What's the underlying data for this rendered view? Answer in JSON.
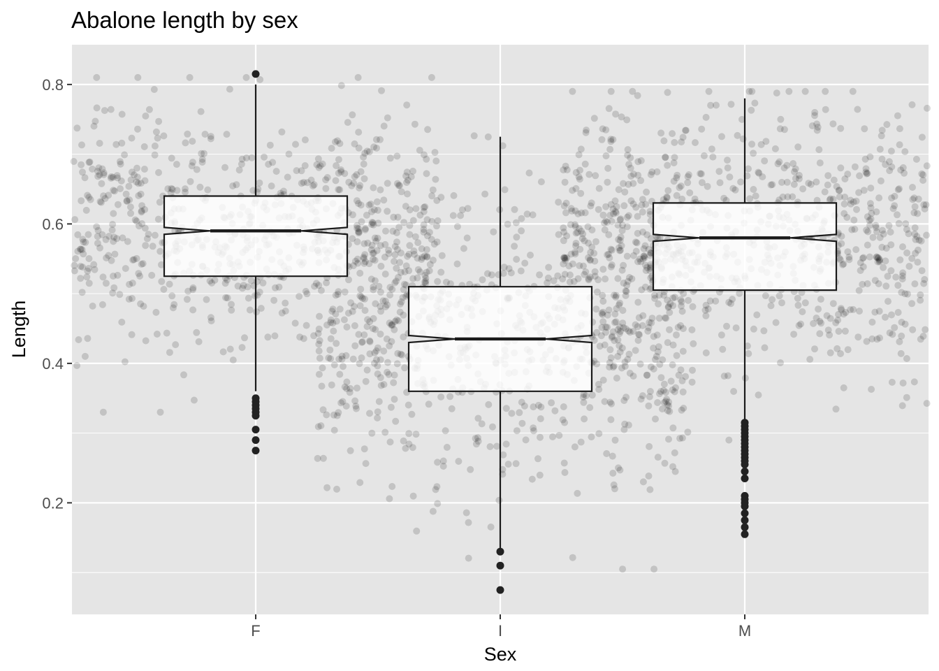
{
  "chart_data": {
    "type": "boxplot",
    "title": "Abalone length by sex",
    "xlabel": "Sex",
    "ylabel": "Length",
    "categories": [
      "F",
      "I",
      "M"
    ],
    "ylim": [
      0.04,
      0.857
    ],
    "y_ticks": [
      0.2,
      0.4,
      0.6,
      0.8
    ],
    "y_tick_labels": [
      "0.2",
      "0.4",
      "0.6",
      "0.8"
    ],
    "notched": true,
    "grid": true,
    "boxes": [
      {
        "category": "F",
        "q1": 0.525,
        "median": 0.59,
        "q3": 0.64,
        "notch_low": 0.585,
        "notch_high": 0.595,
        "whisker_low": 0.36,
        "whisker_high": 0.8,
        "outliers": [
          0.815,
          0.35,
          0.345,
          0.34,
          0.335,
          0.33,
          0.325,
          0.305,
          0.29,
          0.275
        ]
      },
      {
        "category": "I",
        "q1": 0.36,
        "median": 0.435,
        "q3": 0.51,
        "notch_low": 0.43,
        "notch_high": 0.44,
        "whisker_low": 0.135,
        "whisker_high": 0.725,
        "outliers": [
          0.13,
          0.11,
          0.075
        ]
      },
      {
        "category": "M",
        "q1": 0.505,
        "median": 0.58,
        "q3": 0.63,
        "notch_low": 0.575,
        "notch_high": 0.585,
        "whisker_low": 0.32,
        "whisker_high": 0.78,
        "outliers": [
          0.315,
          0.31,
          0.305,
          0.3,
          0.295,
          0.29,
          0.285,
          0.28,
          0.275,
          0.27,
          0.265,
          0.26,
          0.255,
          0.245,
          0.235,
          0.21,
          0.205,
          0.2,
          0.195,
          0.185,
          0.175,
          0.165,
          0.155
        ]
      }
    ],
    "jitter_points": {
      "description_free": true,
      "alpha": 0.15,
      "counts": [
        1307,
        1342,
        1528
      ]
    },
    "colors": {
      "panel_background": "#e5e5e5",
      "grid_major": "#ffffff",
      "box_fill": "#ffffff",
      "box_line": "#1a1a1a",
      "point": "#000000",
      "outlier": "#222222",
      "tick_text": "#4d4d4d"
    }
  }
}
